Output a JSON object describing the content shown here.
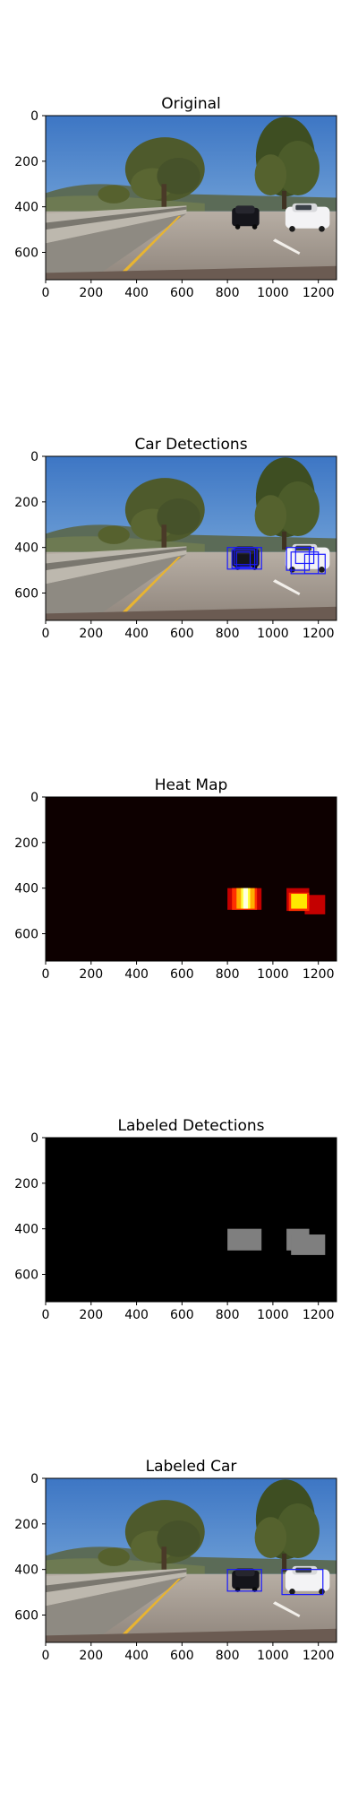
{
  "figure": {
    "background": "#ffffff",
    "axis_color": "#000000"
  },
  "chart_data": [
    {
      "type": "image",
      "title": "Original",
      "image_content": "road-scene",
      "xlim": [
        0,
        1280
      ],
      "ylim": [
        720,
        0
      ],
      "xticks": [
        0,
        200,
        400,
        600,
        800,
        1000,
        1200
      ],
      "yticks": [
        0,
        200,
        400,
        600
      ],
      "boxes": [],
      "grid": false
    },
    {
      "type": "image",
      "title": "Car Detections",
      "image_content": "road-scene",
      "box_color": "#1a1aff",
      "xlim": [
        0,
        1280
      ],
      "ylim": [
        720,
        0
      ],
      "xticks": [
        0,
        200,
        400,
        600,
        800,
        1000,
        1200
      ],
      "yticks": [
        0,
        200,
        400,
        600
      ],
      "boxes": [
        {
          "x0": 800,
          "y0": 400,
          "x1": 950,
          "y1": 495
        },
        {
          "x0": 820,
          "y0": 410,
          "x1": 920,
          "y1": 490
        },
        {
          "x0": 840,
          "y0": 420,
          "x1": 900,
          "y1": 485
        },
        {
          "x0": 830,
          "y0": 400,
          "x1": 930,
          "y1": 475
        },
        {
          "x0": 1060,
          "y0": 400,
          "x1": 1160,
          "y1": 500
        },
        {
          "x0": 1080,
          "y0": 420,
          "x1": 1200,
          "y1": 515
        },
        {
          "x0": 1140,
          "y0": 430,
          "x1": 1230,
          "y1": 515
        },
        {
          "x0": 1100,
          "y0": 400,
          "x1": 1180,
          "y1": 470
        }
      ],
      "grid": false
    },
    {
      "type": "heatmap",
      "title": "Heat Map",
      "background_color": "#0d0000",
      "xlim": [
        0,
        1280
      ],
      "ylim": [
        720,
        0
      ],
      "xticks": [
        0,
        200,
        400,
        600,
        800,
        1000,
        1200
      ],
      "yticks": [
        0,
        200,
        400,
        600
      ],
      "cells": [
        {
          "x0": 800,
          "y0": 400,
          "x1": 950,
          "y1": 495,
          "color": "#c40000"
        },
        {
          "x0": 820,
          "y0": 400,
          "x1": 930,
          "y1": 495,
          "color": "#ff3000"
        },
        {
          "x0": 840,
          "y0": 400,
          "x1": 920,
          "y1": 490,
          "color": "#ffae00"
        },
        {
          "x0": 860,
          "y0": 400,
          "x1": 900,
          "y1": 490,
          "color": "#ffff40"
        },
        {
          "x0": 870,
          "y0": 400,
          "x1": 890,
          "y1": 490,
          "color": "#ffffe0"
        },
        {
          "x0": 1060,
          "y0": 400,
          "x1": 1160,
          "y1": 500,
          "color": "#c40000"
        },
        {
          "x0": 1140,
          "y0": 430,
          "x1": 1230,
          "y1": 515,
          "color": "#c40000"
        },
        {
          "x0": 1070,
          "y0": 420,
          "x1": 1160,
          "y1": 500,
          "color": "#ff3000"
        },
        {
          "x0": 1080,
          "y0": 425,
          "x1": 1150,
          "y1": 490,
          "color": "#ffe800"
        }
      ],
      "grid": false
    },
    {
      "type": "label-map",
      "title": "Labeled Detections",
      "background_color": "#000000",
      "label_color": "#7f7f7f",
      "xlim": [
        0,
        1280
      ],
      "ylim": [
        720,
        0
      ],
      "xticks": [
        0,
        200,
        400,
        600,
        800,
        1000,
        1200
      ],
      "yticks": [
        0,
        200,
        400,
        600
      ],
      "regions": [
        {
          "x0": 800,
          "y0": 400,
          "x1": 950,
          "y1": 495
        },
        {
          "x0": 1060,
          "y0": 400,
          "x1": 1160,
          "y1": 495
        },
        {
          "x0": 1080,
          "y0": 425,
          "x1": 1230,
          "y1": 515
        }
      ],
      "grid": false
    },
    {
      "type": "image",
      "title": "Labeled Car",
      "image_content": "road-scene",
      "box_color": "#1a1aff",
      "xlim": [
        0,
        1280
      ],
      "ylim": [
        720,
        0
      ],
      "xticks": [
        0,
        200,
        400,
        600,
        800,
        1000,
        1200
      ],
      "yticks": [
        0,
        200,
        400,
        600
      ],
      "boxes": [
        {
          "x0": 800,
          "y0": 400,
          "x1": 950,
          "y1": 495
        },
        {
          "x0": 1040,
          "y0": 400,
          "x1": 1220,
          "y1": 510
        }
      ],
      "grid": false
    }
  ]
}
